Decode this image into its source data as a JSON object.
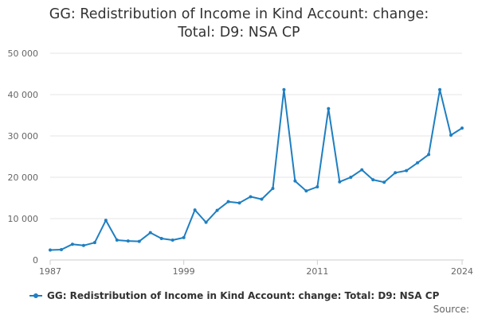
{
  "title_line1": "GG: Redistribution of Income in Kind Account: change:",
  "title_line2": "Total: D9: NSA CP",
  "source_label": "Source:",
  "colors": {
    "series": "#1f7fc1",
    "grid": "#e6e6e6",
    "axis": "#cccccc"
  },
  "chart_data": {
    "type": "line",
    "title": "GG: Redistribution of Income in Kind Account: change: Total: D9: NSA CP",
    "xlabel": "",
    "ylabel": "",
    "xlim": [
      1987,
      2024
    ],
    "ylim": [
      0,
      50000
    ],
    "x_ticks": [
      1987,
      1999,
      2011,
      2024
    ],
    "y_ticks": [
      0,
      10000,
      20000,
      30000,
      40000,
      50000
    ],
    "y_tick_labels": [
      "0",
      "10 000",
      "20 000",
      "30 000",
      "40 000",
      "50 000"
    ],
    "grid": true,
    "legend_position": "bottom",
    "series": [
      {
        "name": "GG: Redistribution of Income in Kind Account: change: Total: D9: NSA CP",
        "x": [
          1987,
          1988,
          1989,
          1990,
          1991,
          1992,
          1993,
          1994,
          1995,
          1996,
          1997,
          1998,
          1999,
          2000,
          2001,
          2002,
          2003,
          2004,
          2005,
          2006,
          2007,
          2008,
          2009,
          2010,
          2011,
          2012,
          2013,
          2014,
          2015,
          2016,
          2017,
          2018,
          2019,
          2020,
          2021,
          2022,
          2023,
          2024
        ],
        "values": [
          2400,
          2500,
          3800,
          3500,
          4200,
          9600,
          4800,
          4600,
          4500,
          6600,
          5200,
          4800,
          5400,
          12100,
          9100,
          12000,
          14100,
          13800,
          15300,
          14700,
          17300,
          41200,
          19100,
          16700,
          17700,
          36600,
          18900,
          20000,
          21800,
          19400,
          18800,
          21100,
          21600,
          23500,
          25500,
          41200,
          30200,
          31900
        ]
      }
    ]
  }
}
